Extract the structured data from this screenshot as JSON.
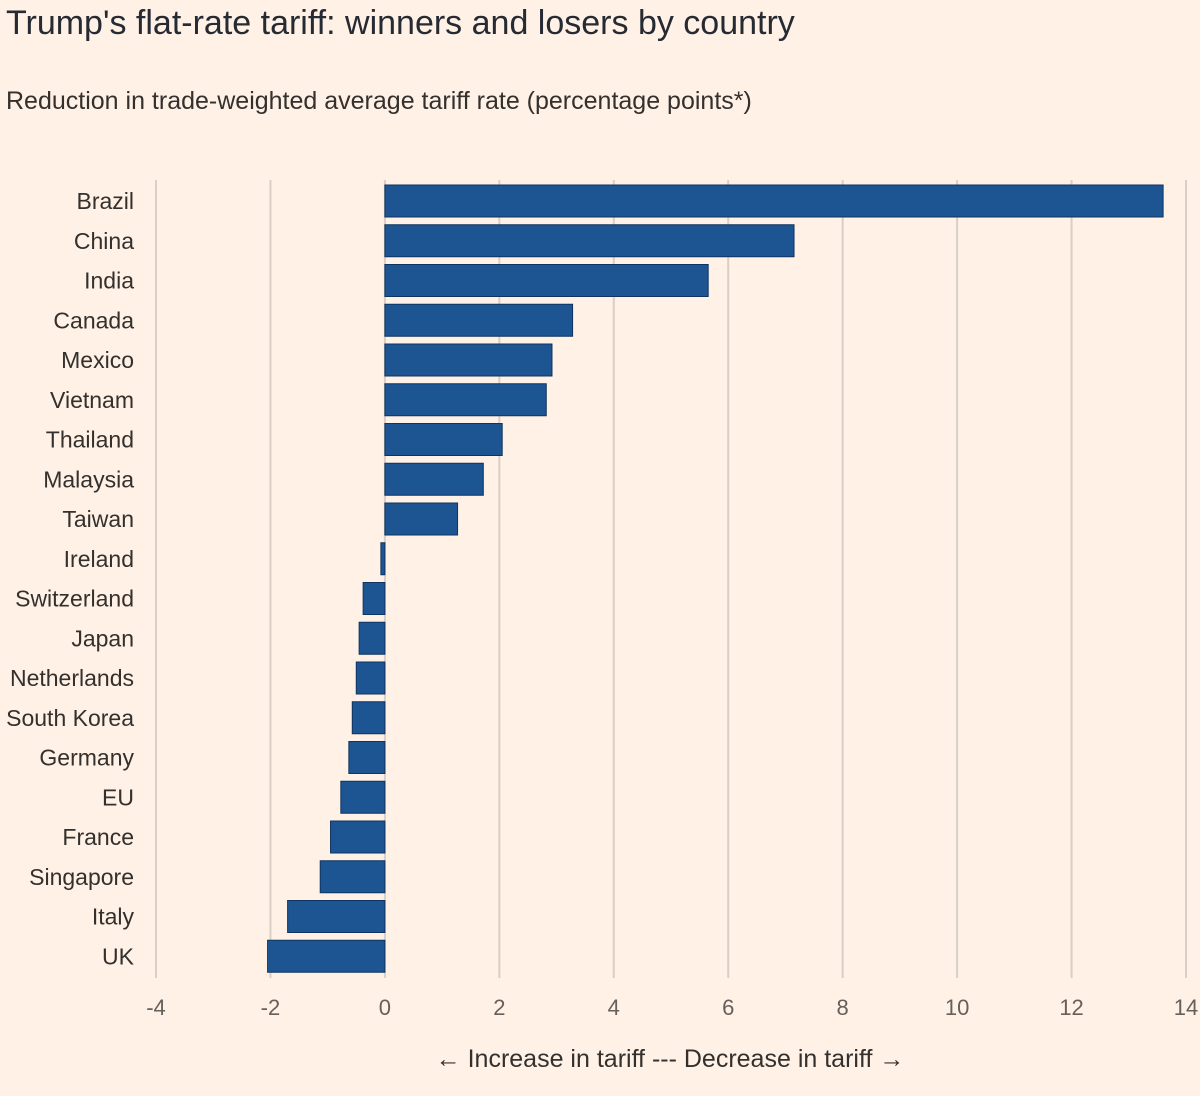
{
  "chart_data": {
    "type": "bar",
    "orientation": "horizontal",
    "title": "Trump's flat-rate tariff: winners and losers by country",
    "subtitle": "Reduction in trade-weighted average tariff rate (percentage points*)",
    "xlabel": "← Increase in tariff --- Decrease in tariff →",
    "ylabel": "",
    "xlim": [
      -4,
      14
    ],
    "ticks": [
      -4,
      -2,
      0,
      2,
      4,
      6,
      8,
      10,
      12,
      14
    ],
    "categories": [
      "Brazil",
      "China",
      "India",
      "Canada",
      "Mexico",
      "Vietnam",
      "Thailand",
      "Malaysia",
      "Taiwan",
      "Ireland",
      "Switzerland",
      "Japan",
      "Netherlands",
      "South Korea",
      "Germany",
      "EU",
      "France",
      "Singapore",
      "Italy",
      "UK"
    ],
    "values": [
      13.6,
      7.15,
      5.65,
      3.28,
      2.92,
      2.82,
      2.05,
      1.72,
      1.27,
      -0.07,
      -0.38,
      -0.45,
      -0.5,
      -0.57,
      -0.63,
      -0.77,
      -0.95,
      -1.13,
      -1.7,
      -2.05
    ],
    "colors": {
      "bar": "#1d5593",
      "background": "#fff1e5",
      "grid": "#d9cfc6"
    }
  }
}
